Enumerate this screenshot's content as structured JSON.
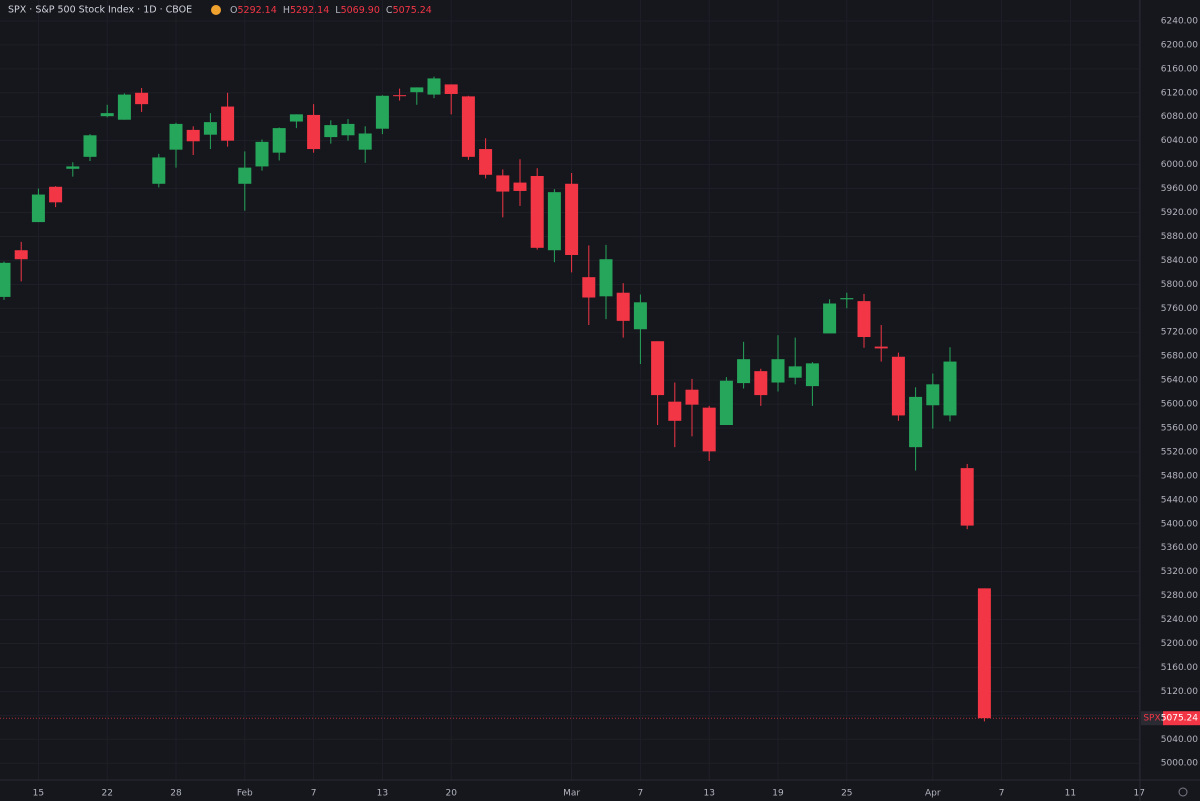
{
  "chart_data": {
    "type": "candlestick",
    "title": "SPX · S&P 500 Stock Index · 1D · CBOE",
    "symbol": "SPX",
    "ohlc_labels": [
      "O",
      "H",
      "L",
      "C"
    ],
    "last_value_labels": [
      "5292.14",
      "5292.14",
      "5069.90",
      "5075.24"
    ],
    "categories": [
      null,
      null,
      "15",
      null,
      null,
      null,
      "22",
      null,
      null,
      null,
      "28",
      null,
      null,
      null,
      "Feb",
      null,
      null,
      null,
      "7",
      null,
      null,
      null,
      "13",
      null,
      null,
      null,
      "20",
      null,
      null,
      null,
      null,
      null,
      null,
      "Mar",
      null,
      null,
      null,
      "7",
      null,
      null,
      null,
      "13",
      null,
      null,
      null,
      "19",
      null,
      null,
      null,
      "25",
      null,
      null,
      null,
      null,
      "Apr",
      null,
      null,
      null,
      "7",
      null,
      null,
      null,
      "11",
      null,
      null,
      null,
      "17"
    ],
    "open": [
      5779,
      5857,
      5904,
      5963,
      5993,
      6013,
      6081,
      6075,
      6120,
      5968,
      6025,
      6058,
      6050,
      6097,
      5968,
      5997,
      6020,
      6072,
      6083,
      6046,
      6049,
      6025,
      6060,
      6116,
      6121,
      6117,
      6134,
      6114,
      6026,
      5982,
      5970,
      5981,
      5857,
      5968,
      5812,
      5780,
      5786,
      5725,
      5705,
      5604,
      5624,
      5594,
      5565,
      5635,
      5655,
      5636,
      5644,
      5630,
      5718,
      5775,
      5772,
      5696,
      5679,
      5528,
      5598,
      5581,
      5493,
      5292.14,
      null,
      null,
      null,
      null,
      null,
      null,
      null,
      null,
      null
    ],
    "high": [
      5838,
      5871,
      5960,
      5964,
      6004,
      6051,
      6100,
      6119,
      6128,
      6018,
      6070,
      6064,
      6086,
      6120,
      6022,
      6042,
      6062,
      6084,
      6101,
      6074,
      6076,
      6064,
      6116,
      6127,
      6129,
      6147,
      6134,
      6115,
      6044,
      5992,
      6009,
      5994,
      5959,
      5986,
      5865,
      5866,
      5802,
      5783,
      5705,
      5636,
      5642,
      5597,
      5645,
      5704,
      5659,
      5715,
      5711,
      5670,
      5775,
      5786,
      5784,
      5732,
      5686,
      5628,
      5651,
      5695,
      5500,
      5292.14,
      null,
      null,
      null,
      null,
      null,
      null,
      null,
      null,
      null
    ],
    "low": [
      5774,
      5805,
      5904,
      5929,
      5980,
      6006,
      6079,
      6075,
      6088,
      5962,
      5995,
      6016,
      6026,
      6030,
      5923,
      5990,
      6007,
      6061,
      6020,
      6035,
      6040,
      6003,
      6051,
      6107,
      6100,
      6111,
      6084,
      6008,
      5977,
      5912,
      5931,
      5858,
      5837,
      5820,
      5732,
      5742,
      5711,
      5667,
      5565,
      5528,
      5546,
      5505,
      5565,
      5626,
      5597,
      5621,
      5633,
      5597,
      5718,
      5760,
      5694,
      5671,
      5572,
      5489,
      5559,
      5571,
      5391,
      5069.9,
      null,
      null,
      null,
      null,
      null,
      null,
      null,
      null,
      null
    ],
    "close": [
      5836,
      5842,
      5950,
      5937,
      5997,
      6049,
      6086,
      6117,
      6101,
      6012,
      6068,
      6039,
      6071,
      6040,
      5995,
      6038,
      6061,
      6084,
      6026,
      6066,
      6068,
      6052,
      6115,
      6115,
      6129,
      6144,
      6118,
      6013,
      5983,
      5955,
      5956,
      5861,
      5954,
      5849,
      5778,
      5842,
      5739,
      5770,
      5615,
      5572,
      5599,
      5521,
      5639,
      5675,
      5615,
      5675,
      5663,
      5668,
      5768,
      5777,
      5712,
      5693,
      5581,
      5612,
      5633,
      5671,
      5397,
      5075.24,
      null,
      null,
      null,
      null,
      null,
      null,
      null,
      null,
      null
    ],
    "up_color": "#26a65b",
    "down_color": "#f23645",
    "ylim": [
      4972,
      6275
    ],
    "yticks": [
      {
        "value": 5000,
        "label": "5000.00"
      },
      {
        "value": 5040,
        "label": "5040.00"
      },
      {
        "value": 5080,
        "label": "5080.00"
      },
      {
        "value": 5120,
        "label": "5120.00"
      },
      {
        "value": 5160,
        "label": "5160.00"
      },
      {
        "value": 5200,
        "label": "5200.00"
      },
      {
        "value": 5240,
        "label": "5240.00"
      },
      {
        "value": 5280,
        "label": "5280.00"
      },
      {
        "value": 5320,
        "label": "5320.00"
      },
      {
        "value": 5360,
        "label": "5360.00"
      },
      {
        "value": 5400,
        "label": "5400.00"
      },
      {
        "value": 5440,
        "label": "5440.00"
      },
      {
        "value": 5480,
        "label": "5480.00"
      },
      {
        "value": 5520,
        "label": "5520.00"
      },
      {
        "value": 5560,
        "label": "5560.00"
      },
      {
        "value": 5600,
        "label": "5600.00"
      },
      {
        "value": 5640,
        "label": "5640.00"
      },
      {
        "value": 5680,
        "label": "5680.00"
      },
      {
        "value": 5720,
        "label": "5720.00"
      },
      {
        "value": 5760,
        "label": "5760.00"
      },
      {
        "value": 5800,
        "label": "5800.00"
      },
      {
        "value": 5840,
        "label": "5840.00"
      },
      {
        "value": 5880,
        "label": "5880.00"
      },
      {
        "value": 5920,
        "label": "5920.00"
      },
      {
        "value": 5960,
        "label": "5960.00"
      },
      {
        "value": 6000,
        "label": "6000.00"
      },
      {
        "value": 6040,
        "label": "6040.00"
      },
      {
        "value": 6080,
        "label": "6080.00"
      },
      {
        "value": 6120,
        "label": "6120.00"
      },
      {
        "value": 6160,
        "label": "6160.00"
      },
      {
        "value": 6200,
        "label": "6200.00"
      },
      {
        "value": 6240,
        "label": "6240.00"
      }
    ],
    "grid": true
  }
}
